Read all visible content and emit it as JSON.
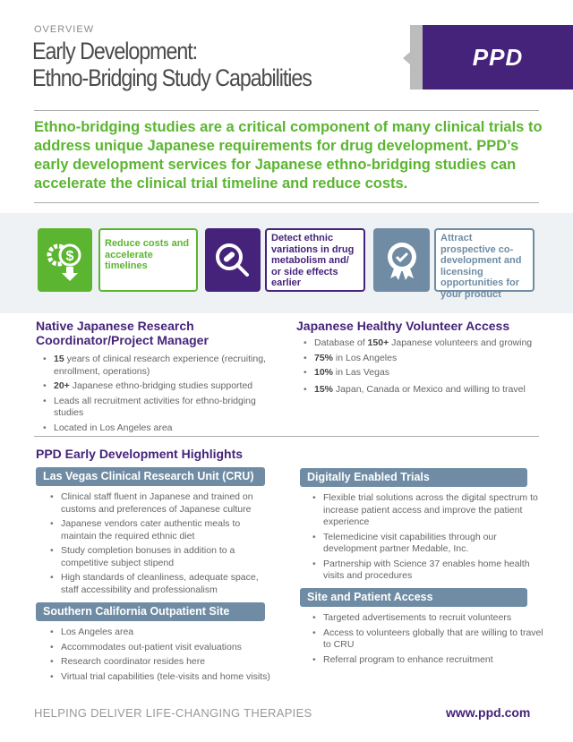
{
  "header": {
    "overview": "OVERVIEW",
    "title_line1": "Early Development:",
    "title_line2": "Ethno-Bridging Study Capabilities",
    "logo": "PPD"
  },
  "intro": "Ethno-bridging studies are a critical component of many clinical trials to address unique Japanese requirements for drug development. PPD’s early development services for Japanese ethno-bridging studies can accelerate the clinical trial timeline and reduce costs.",
  "benefits": [
    {
      "icon": "gear-dollar-icon",
      "text": "Reduce costs and accelerate timelines",
      "color": "#5cb531"
    },
    {
      "icon": "magnifier-pill-icon",
      "text": "Detect ethnic variations in drug metabolism and/ or side effects earlier",
      "color": "#46237a"
    },
    {
      "icon": "award-ribbon-icon",
      "text": "Attract prospective co-development and licensing opportunities for your product",
      "color": "#6f8ca4"
    }
  ],
  "coordinator": {
    "heading": "Native Japanese Research Coordinator/Project Manager",
    "items": [
      {
        "b": "15",
        "t": " years of clinical research experience (recruiting, enrollment, operations)"
      },
      {
        "b": "20+",
        "t": " Japanese ethno-bridging studies supported"
      },
      {
        "b": "",
        "t": "Leads all recruitment activities for ethno-bridging studies"
      },
      {
        "b": "",
        "t": "Located in Los Angeles area"
      }
    ]
  },
  "volunteers": {
    "heading": "Japanese Healthy Volunteer Access",
    "items": [
      {
        "pre": "Database of ",
        "b": "150+",
        "t": " Japanese volunteers and growing"
      },
      {
        "pre": "",
        "b": "75%",
        "t": " in Los Angeles"
      },
      {
        "pre": "",
        "b": "10%",
        "t": " in Las Vegas"
      },
      {
        "pre": "",
        "b": "15%",
        "t": " Japan, Canada or Mexico and willing to travel"
      }
    ]
  },
  "highlights": {
    "heading": "PPD Early Development Highlights",
    "lv": {
      "title": "Las Vegas Clinical Research Unit (CRU)",
      "items": [
        "Clinical staff fluent in Japanese and trained on customs and preferences of Japanese culture",
        "Japanese vendors cater authentic meals to maintain the required ethnic diet",
        "Study completion bonuses in addition to a competitive subject stipend",
        "High standards of cleanliness, adequate space, staff accessibility and professionalism"
      ]
    },
    "sc": {
      "title": "Southern California Outpatient Site",
      "items": [
        "Los Angeles area",
        "Accommodates out-patient visit evaluations",
        "Research coordinator resides here",
        "Virtual trial capabilities (tele-visits and home visits)"
      ]
    },
    "dt": {
      "title": "Digitally Enabled Trials",
      "items": [
        "Flexible trial solutions across the digital spectrum to increase patient access and improve the patient experience",
        "Telemedicine visit capabilities through our development partner Medable, Inc.",
        "Partnership with Science 37 enables home health visits and procedures"
      ]
    },
    "sp": {
      "title": "Site and Patient Access",
      "items": [
        "Targeted advertisements to recruit volunteers",
        "Access to volunteers globally that are willing to travel to CRU",
        "Referral program to enhance recruitment"
      ]
    }
  },
  "footer": {
    "tagline": "HELPING DELIVER LIFE-CHANGING THERAPIES",
    "url": "www.ppd.com"
  }
}
